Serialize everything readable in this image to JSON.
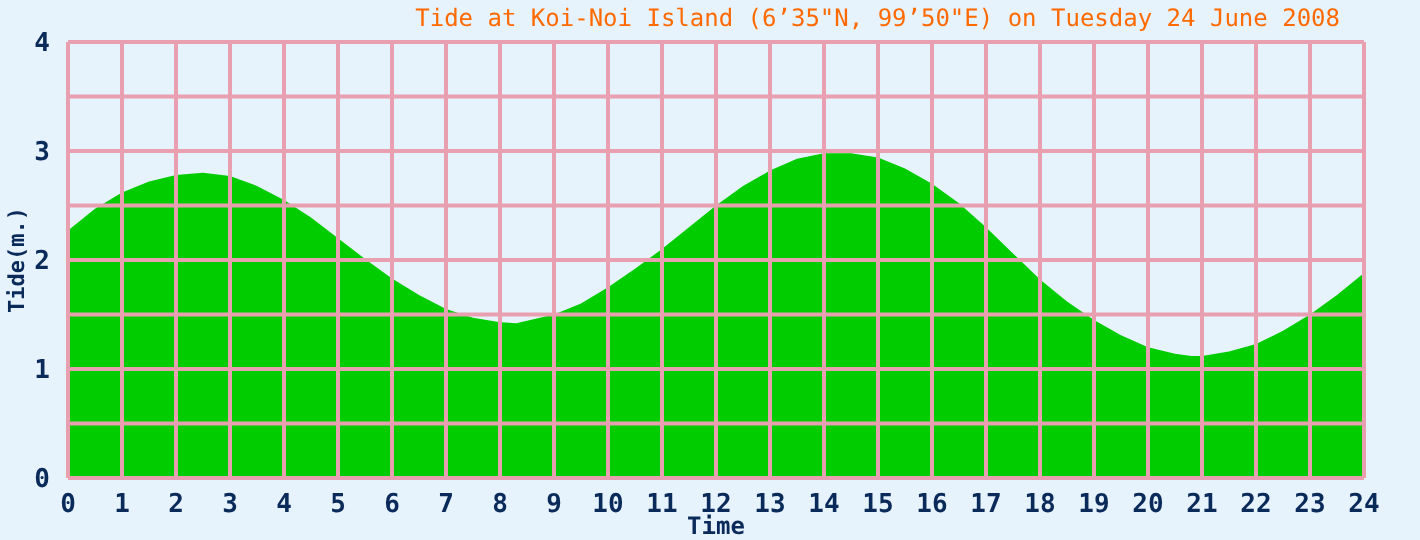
{
  "chart_data": {
    "type": "area",
    "title": "Tide at Koi-Noi Island (6’35\"N, 99’50\"E) on Tuesday 24 June 2008",
    "xlabel": "Time",
    "ylabel": "Tide(m.)",
    "x": [
      0,
      0.5,
      1,
      1.5,
      2,
      2.5,
      3,
      3.5,
      4,
      4.5,
      5,
      5.5,
      6,
      6.5,
      7,
      7.5,
      8,
      8.3,
      9,
      9.5,
      10,
      10.5,
      11,
      11.5,
      12,
      12.5,
      13,
      13.5,
      14,
      14.5,
      15,
      15.5,
      16,
      16.5,
      17,
      17.5,
      18,
      18.5,
      19,
      19.5,
      20,
      20.5,
      20.8,
      21,
      21.5,
      22,
      22.5,
      23,
      23.5,
      24
    ],
    "series": [
      {
        "color": "#00cc00",
        "values": [
          2.27,
          2.47,
          2.62,
          2.72,
          2.78,
          2.8,
          2.77,
          2.68,
          2.55,
          2.39,
          2.2,
          2.01,
          1.83,
          1.68,
          1.55,
          1.47,
          1.43,
          1.42,
          1.5,
          1.6,
          1.75,
          1.92,
          2.1,
          2.3,
          2.5,
          2.68,
          2.82,
          2.93,
          2.98,
          2.98,
          2.94,
          2.84,
          2.7,
          2.52,
          2.3,
          2.06,
          1.82,
          1.62,
          1.45,
          1.31,
          1.2,
          1.14,
          1.12,
          1.12,
          1.16,
          1.23,
          1.35,
          1.5,
          1.68,
          1.88
        ]
      }
    ],
    "xlim": [
      0,
      24
    ],
    "xticks": [
      0,
      1,
      2,
      3,
      4,
      5,
      6,
      7,
      8,
      9,
      10,
      11,
      12,
      13,
      14,
      15,
      16,
      17,
      18,
      19,
      20,
      21,
      22,
      23,
      24
    ],
    "ylim": [
      0,
      4
    ],
    "yticks": [
      0,
      {
        "value": 0.5,
        "label": null
      },
      1,
      {
        "value": 1.5,
        "label": null
      },
      2,
      {
        "value": 2.5,
        "label": null
      },
      3,
      {
        "value": 3.5,
        "label": null
      },
      4
    ],
    "grid": true
  }
}
